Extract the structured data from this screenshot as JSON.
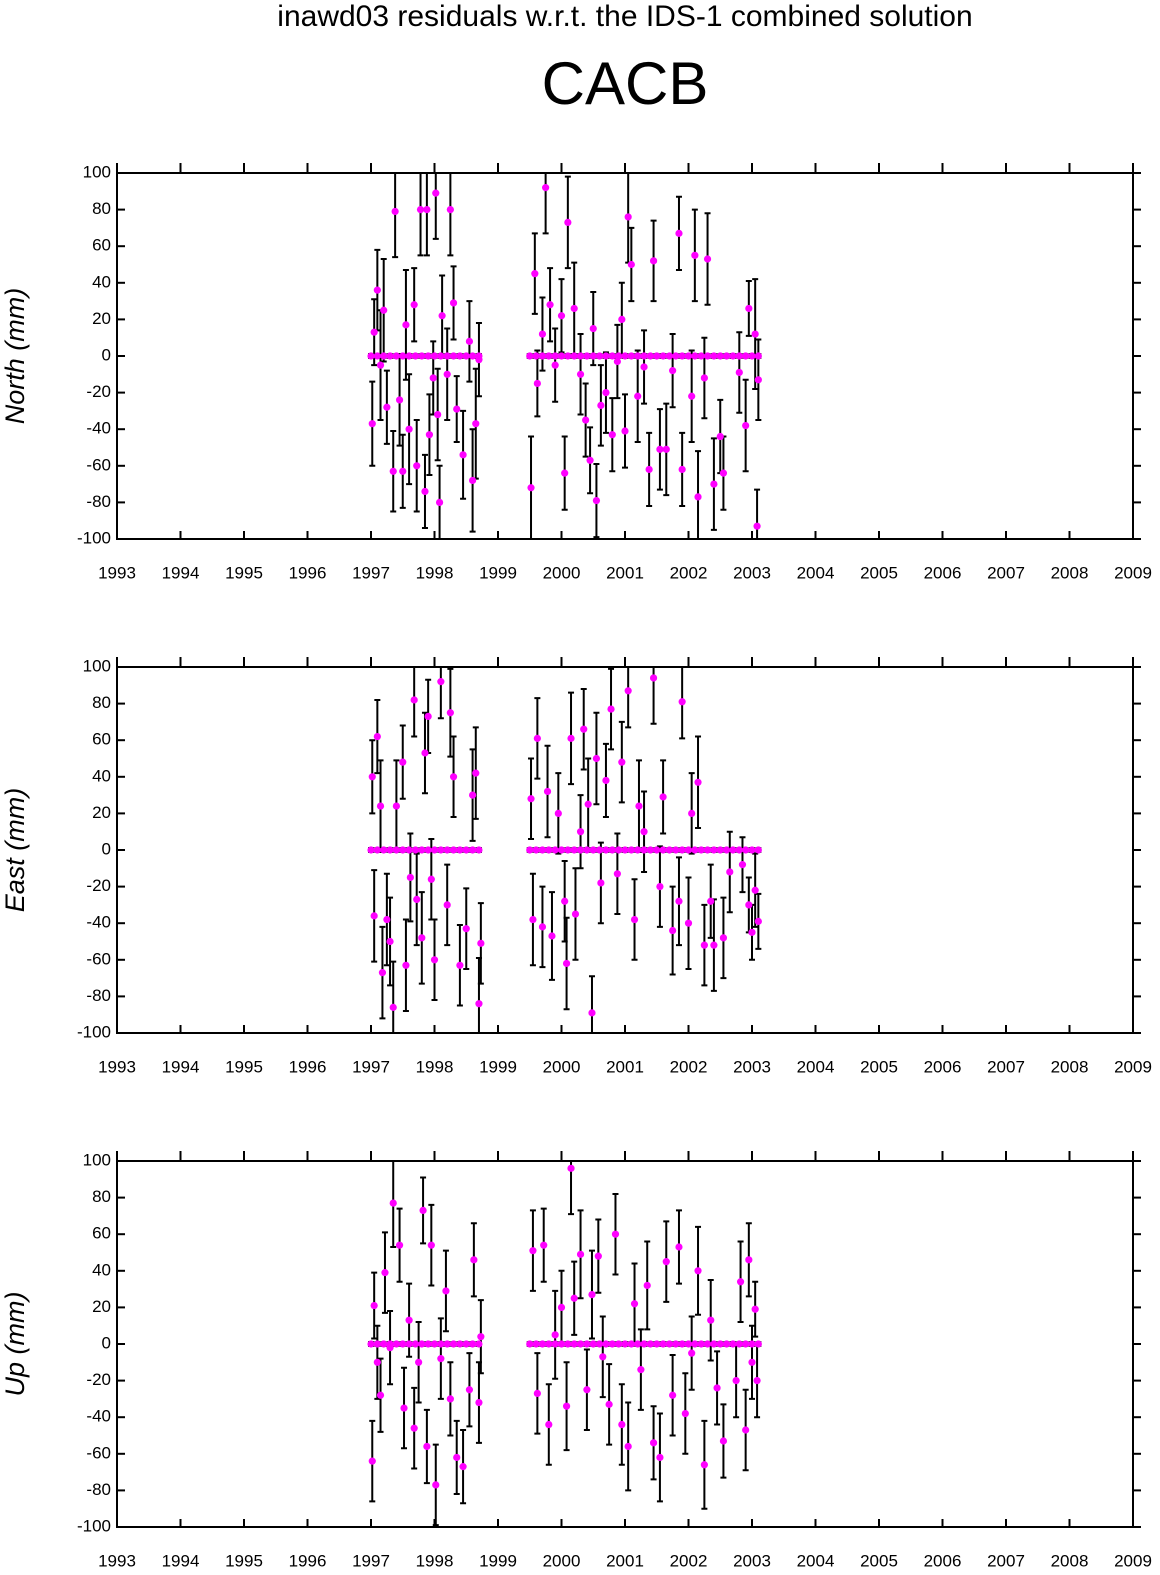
{
  "header": {
    "title": "inawd03 residuals w.r.t. the IDS-1 combined solution",
    "station": "CACB"
  },
  "chart_data": [
    {
      "type": "scatter",
      "ylabel": "North (mm)",
      "color": "#ff00ff",
      "error_color": "#000000",
      "xlim": [
        1993,
        2009
      ],
      "xticks": [
        1993,
        1994,
        1995,
        1996,
        1997,
        1998,
        1999,
        2000,
        2001,
        2002,
        2003,
        2004,
        2005,
        2006,
        2007,
        2008,
        2009
      ],
      "ylim": [
        -100,
        100
      ],
      "yticks": [
        -100,
        -80,
        -60,
        -40,
        -20,
        0,
        20,
        40,
        60,
        80,
        100
      ],
      "x": [
        1997.02,
        1997.05,
        1997.1,
        1997.15,
        1997.2,
        1997.25,
        1997.35,
        1997.38,
        1997.45,
        1997.5,
        1997.55,
        1997.6,
        1997.68,
        1997.72,
        1997.78,
        1997.85,
        1997.88,
        1997.92,
        1997.98,
        1998.02,
        1998.05,
        1998.08,
        1998.12,
        1998.2,
        1998.25,
        1998.3,
        1998.35,
        1998.45,
        1998.55,
        1998.6,
        1998.65,
        1998.7,
        1999.52,
        1999.58,
        1999.62,
        1999.7,
        1999.75,
        1999.82,
        1999.9,
        2000.0,
        2000.05,
        2000.1,
        2000.2,
        2000.3,
        2000.38,
        2000.45,
        2000.5,
        2000.55,
        2000.62,
        2000.7,
        2000.8,
        2000.88,
        2000.95,
        2001.0,
        2001.05,
        2001.1,
        2001.2,
        2001.3,
        2001.38,
        2001.45,
        2001.55,
        2001.65,
        2001.75,
        2001.85,
        2001.9,
        2002.05,
        2002.1,
        2002.15,
        2002.25,
        2002.3,
        2002.4,
        2002.5,
        2002.55,
        2002.8,
        2002.9,
        2002.95,
        2003.05,
        2003.08,
        2003.1,
        1997.0,
        1997.1,
        1997.2,
        1997.3,
        1997.4,
        1997.5,
        1997.6,
        1997.7,
        1997.8,
        1997.9,
        1998.0,
        1998.1,
        1998.2,
        1998.3,
        1998.4,
        1998.5,
        1998.6,
        1998.7,
        1999.5,
        1999.6,
        1999.7,
        1999.8,
        1999.9,
        2000.0,
        2000.1,
        2000.2,
        2000.3,
        2000.4,
        2000.5,
        2000.6,
        2000.7,
        2000.8,
        2000.9,
        2001.0,
        2001.1,
        2001.2,
        2001.3,
        2001.4,
        2001.5,
        2001.6,
        2001.7,
        2001.8,
        2001.9,
        2002.0,
        2002.1,
        2002.2,
        2002.3,
        2002.4,
        2002.5,
        2002.6,
        2002.7,
        2002.8,
        2002.9,
        2003.0,
        2003.1
      ],
      "values": [
        -37,
        13,
        36,
        -5,
        25,
        -28,
        -63,
        79,
        -24,
        -63,
        17,
        -40,
        28,
        -60,
        80,
        -74,
        80,
        -43,
        -12,
        89,
        -32,
        -80,
        22,
        -10,
        80,
        29,
        -29,
        -54,
        8,
        -68,
        -37,
        -2,
        -72,
        45,
        -15,
        12,
        92,
        28,
        -5,
        22,
        -64,
        73,
        26,
        -10,
        -35,
        -57,
        15,
        -79,
        -27,
        -20,
        -43,
        -3,
        20,
        -41,
        76,
        50,
        -22,
        -6,
        -62,
        52,
        -51,
        -51,
        -8,
        67,
        -62,
        -22,
        55,
        -77,
        -12,
        53,
        -70,
        -44,
        -64,
        -9,
        -38,
        26,
        12,
        -93,
        -13,
        0,
        0,
        0,
        0,
        0,
        0,
        0,
        0,
        0,
        0,
        0,
        0,
        0,
        0,
        0,
        0,
        0,
        0,
        0,
        0,
        0,
        0,
        0,
        0,
        0,
        0,
        0,
        0,
        0,
        0,
        0,
        0,
        0,
        0,
        0,
        0,
        0,
        0,
        0,
        0,
        0,
        0,
        0,
        0,
        0,
        0,
        0,
        0,
        0,
        0,
        0,
        0,
        0,
        0,
        0
      ],
      "errors": [
        23,
        18,
        22,
        30,
        28,
        20,
        22,
        25,
        25,
        20,
        30,
        30,
        20,
        25,
        25,
        20,
        25,
        22,
        20,
        25,
        25,
        20,
        22,
        25,
        25,
        20,
        18,
        24,
        22,
        28,
        30,
        20,
        28,
        22,
        18,
        20,
        25,
        20,
        20,
        20,
        20,
        25,
        25,
        22,
        20,
        18,
        20,
        20,
        22,
        22,
        20,
        20,
        20,
        20,
        25,
        20,
        25,
        20,
        20,
        22,
        22,
        25,
        20,
        20,
        20,
        25,
        25,
        25,
        22,
        25,
        25,
        20,
        20,
        22,
        25,
        15,
        30,
        20,
        22,
        1,
        1,
        1,
        1,
        1,
        1,
        1,
        1,
        1,
        1,
        1,
        1,
        1,
        1,
        1,
        1,
        1,
        1,
        1,
        1,
        1,
        1,
        1,
        1,
        1,
        1,
        1,
        1,
        1,
        1,
        1,
        1,
        1,
        1,
        1,
        1,
        1,
        1,
        1,
        1,
        1,
        1,
        1,
        1,
        1,
        1,
        1,
        1,
        1,
        1,
        1,
        1,
        1,
        1,
        1
      ]
    },
    {
      "type": "scatter",
      "ylabel": "East (mm)",
      "color": "#ff00ff",
      "error_color": "#000000",
      "xlim": [
        1993,
        2009
      ],
      "xticks": [
        1993,
        1994,
        1995,
        1996,
        1997,
        1998,
        1999,
        2000,
        2001,
        2002,
        2003,
        2004,
        2005,
        2006,
        2007,
        2008,
        2009
      ],
      "ylim": [
        -100,
        100
      ],
      "yticks": [
        -100,
        -80,
        -60,
        -40,
        -20,
        0,
        20,
        40,
        60,
        80,
        100
      ],
      "x": [
        1997.02,
        1997.05,
        1997.1,
        1997.15,
        1997.18,
        1997.25,
        1997.3,
        1997.35,
        1997.4,
        1997.5,
        1997.55,
        1997.62,
        1997.68,
        1997.72,
        1997.8,
        1997.85,
        1997.9,
        1997.95,
        1998.0,
        1998.1,
        1998.2,
        1998.25,
        1998.3,
        1998.4,
        1998.5,
        1998.6,
        1998.65,
        1998.7,
        1998.73,
        1999.52,
        1999.55,
        1999.62,
        1999.7,
        1999.78,
        1999.85,
        1999.95,
        2000.05,
        2000.08,
        2000.15,
        2000.22,
        2000.3,
        2000.35,
        2000.42,
        2000.48,
        2000.55,
        2000.62,
        2000.7,
        2000.78,
        2000.88,
        2000.95,
        2001.05,
        2001.15,
        2001.22,
        2001.3,
        2001.45,
        2001.55,
        2001.6,
        2001.75,
        2001.85,
        2001.9,
        2002.0,
        2002.05,
        2002.15,
        2002.25,
        2002.35,
        2002.4,
        2002.55,
        2002.65,
        2002.85,
        2002.95,
        2003.0,
        2003.05,
        2003.1,
        1997.0,
        1997.1,
        1997.2,
        1997.3,
        1997.4,
        1997.5,
        1997.6,
        1997.7,
        1997.8,
        1997.9,
        1998.0,
        1998.1,
        1998.2,
        1998.3,
        1998.4,
        1998.5,
        1998.6,
        1998.7,
        1999.5,
        1999.6,
        1999.7,
        1999.8,
        1999.9,
        2000.0,
        2000.1,
        2000.2,
        2000.3,
        2000.4,
        2000.5,
        2000.6,
        2000.7,
        2000.8,
        2000.9,
        2001.0,
        2001.1,
        2001.2,
        2001.3,
        2001.4,
        2001.5,
        2001.6,
        2001.7,
        2001.8,
        2001.9,
        2002.0,
        2002.1,
        2002.2,
        2002.3,
        2002.4,
        2002.5,
        2002.6,
        2002.7,
        2002.8,
        2002.9,
        2003.0,
        2003.1
      ],
      "values": [
        40,
        -36,
        62,
        24,
        -67,
        -38,
        -50,
        -86,
        24,
        48,
        -63,
        -15,
        82,
        -27,
        -48,
        53,
        73,
        -16,
        -60,
        92,
        -30,
        75,
        40,
        -63,
        -43,
        30,
        42,
        -84,
        -51,
        28,
        -38,
        61,
        -42,
        32,
        -47,
        20,
        -28,
        -62,
        61,
        -35,
        10,
        66,
        25,
        -89,
        50,
        -18,
        38,
        77,
        -13,
        48,
        87,
        -38,
        24,
        10,
        94,
        -20,
        29,
        -44,
        -28,
        81,
        -40,
        20,
        37,
        -52,
        -28,
        -52,
        -48,
        -12,
        -8,
        -30,
        -45,
        -22,
        -39,
        0,
        0,
        0,
        0,
        0,
        0,
        0,
        0,
        0,
        0,
        0,
        0,
        0,
        0,
        0,
        0,
        0,
        0,
        0,
        0,
        0,
        0,
        0,
        0,
        0,
        0,
        0,
        0,
        0,
        0,
        0,
        0,
        0,
        0,
        0,
        0,
        0,
        0,
        0,
        0,
        0,
        0,
        0,
        0,
        0,
        0,
        0,
        0,
        0,
        0,
        0,
        0,
        0,
        0,
        0
      ],
      "errors": [
        20,
        25,
        20,
        25,
        25,
        25,
        24,
        25,
        25,
        20,
        25,
        24,
        20,
        25,
        25,
        22,
        20,
        22,
        22,
        20,
        22,
        24,
        22,
        22,
        22,
        25,
        25,
        25,
        22,
        22,
        25,
        22,
        22,
        25,
        24,
        22,
        22,
        25,
        25,
        25,
        20,
        22,
        25,
        20,
        25,
        22,
        20,
        22,
        22,
        22,
        20,
        22,
        25,
        22,
        25,
        22,
        20,
        24,
        24,
        20,
        25,
        22,
        25,
        22,
        20,
        25,
        22,
        22,
        15,
        15,
        15,
        20,
        15,
        1,
        1,
        1,
        1,
        1,
        1,
        1,
        1,
        1,
        1,
        1,
        1,
        1,
        1,
        1,
        1,
        1,
        1,
        1,
        1,
        1,
        1,
        1,
        1,
        1,
        1,
        1,
        1,
        1,
        1,
        1,
        1,
        1,
        1,
        1,
        1,
        1,
        1,
        1,
        1,
        1,
        1,
        1,
        1,
        1,
        1,
        1,
        1,
        1,
        1,
        1,
        1,
        1,
        1,
        1
      ]
    },
    {
      "type": "scatter",
      "ylabel": "Up (mm)",
      "color": "#ff00ff",
      "error_color": "#000000",
      "xlim": [
        1993,
        2009
      ],
      "xticks": [
        1993,
        1994,
        1995,
        1996,
        1997,
        1998,
        1999,
        2000,
        2001,
        2002,
        2003,
        2004,
        2005,
        2006,
        2007,
        2008,
        2009
      ],
      "ylim": [
        -100,
        100
      ],
      "yticks": [
        -100,
        -80,
        -60,
        -40,
        -20,
        0,
        20,
        40,
        60,
        80,
        100
      ],
      "x": [
        1997.02,
        1997.05,
        1997.1,
        1997.15,
        1997.22,
        1997.3,
        1997.35,
        1997.45,
        1997.52,
        1997.6,
        1997.68,
        1997.75,
        1997.82,
        1997.88,
        1997.95,
        1998.02,
        1998.1,
        1998.18,
        1998.25,
        1998.35,
        1998.45,
        1998.55,
        1998.62,
        1998.7,
        1998.73,
        1999.55,
        1999.62,
        1999.72,
        1999.8,
        1999.9,
        2000.0,
        2000.08,
        2000.15,
        2000.2,
        2000.3,
        2000.4,
        2000.48,
        2000.58,
        2000.65,
        2000.75,
        2000.85,
        2000.95,
        2001.05,
        2001.15,
        2001.25,
        2001.35,
        2001.45,
        2001.55,
        2001.65,
        2001.75,
        2001.85,
        2001.95,
        2002.05,
        2002.15,
        2002.25,
        2002.35,
        2002.45,
        2002.55,
        2002.75,
        2002.82,
        2002.9,
        2002.95,
        2003.0,
        2003.05,
        2003.08,
        1997.0,
        1997.1,
        1997.2,
        1997.3,
        1997.4,
        1997.5,
        1997.6,
        1997.7,
        1997.8,
        1997.9,
        1998.0,
        1998.1,
        1998.2,
        1998.3,
        1998.4,
        1998.5,
        1998.6,
        1998.7,
        1999.5,
        1999.6,
        1999.7,
        1999.8,
        1999.9,
        2000.0,
        2000.1,
        2000.2,
        2000.3,
        2000.4,
        2000.5,
        2000.6,
        2000.7,
        2000.8,
        2000.9,
        2001.0,
        2001.1,
        2001.2,
        2001.3,
        2001.4,
        2001.5,
        2001.6,
        2001.7,
        2001.8,
        2001.9,
        2002.0,
        2002.1,
        2002.2,
        2002.3,
        2002.4,
        2002.5,
        2002.6,
        2002.7,
        2002.8,
        2002.9,
        2003.0,
        2003.1
      ],
      "values": [
        -64,
        21,
        -10,
        -28,
        39,
        -2,
        77,
        54,
        -35,
        13,
        -46,
        -10,
        73,
        -56,
        54,
        -77,
        -8,
        29,
        -30,
        -62,
        -67,
        -25,
        46,
        -32,
        4,
        51,
        -27,
        54,
        -44,
        5,
        20,
        -34,
        96,
        25,
        49,
        -25,
        27,
        48,
        -7,
        -33,
        60,
        -44,
        -56,
        22,
        -14,
        32,
        -54,
        -62,
        45,
        -28,
        53,
        -38,
        -5,
        40,
        -66,
        13,
        -24,
        -53,
        -20,
        34,
        -47,
        46,
        -10,
        19,
        -20,
        0,
        0,
        0,
        0,
        0,
        0,
        0,
        0,
        0,
        0,
        0,
        0,
        0,
        0,
        0,
        0,
        0,
        0,
        0,
        0,
        0,
        0,
        0,
        0,
        0,
        0,
        0,
        0,
        0,
        0,
        0,
        0,
        0,
        0,
        0,
        0,
        0,
        0,
        0,
        0,
        0,
        0,
        0,
        0,
        0,
        0,
        0,
        0,
        0,
        0,
        0,
        0,
        0,
        0,
        0
      ],
      "errors": [
        22,
        18,
        20,
        20,
        22,
        20,
        24,
        20,
        22,
        20,
        22,
        22,
        18,
        20,
        22,
        22,
        22,
        22,
        20,
        20,
        20,
        20,
        20,
        22,
        20,
        22,
        22,
        20,
        22,
        24,
        20,
        24,
        25,
        20,
        24,
        22,
        24,
        20,
        22,
        22,
        22,
        22,
        24,
        22,
        22,
        24,
        20,
        24,
        22,
        22,
        20,
        22,
        20,
        24,
        24,
        22,
        20,
        20,
        20,
        22,
        22,
        20,
        20,
        15,
        20,
        1,
        1,
        1,
        1,
        1,
        1,
        1,
        1,
        1,
        1,
        1,
        1,
        1,
        1,
        1,
        1,
        1,
        1,
        1,
        1,
        1,
        1,
        1,
        1,
        1,
        1,
        1,
        1,
        1,
        1,
        1,
        1,
        1,
        1,
        1,
        1,
        1,
        1,
        1,
        1,
        1,
        1,
        1,
        1,
        1,
        1,
        1,
        1,
        1,
        1,
        1,
        1,
        1,
        1,
        1
      ]
    }
  ]
}
